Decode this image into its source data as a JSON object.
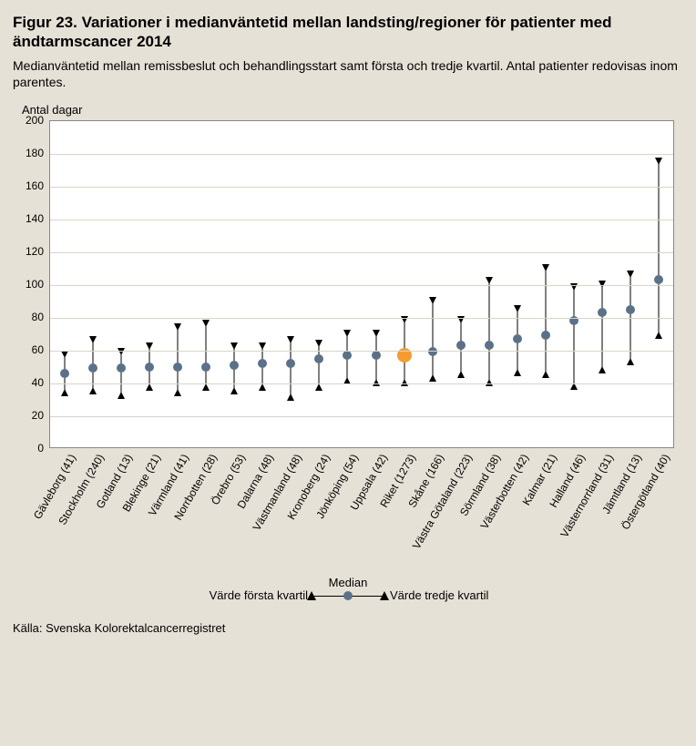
{
  "title": "Figur 23. Variationer i medianväntetid mellan landsting/regioner för patienter med ändtarmscancer 2014",
  "subtitle": "Medianväntetid mellan remissbeslut och behandlingsstart samt första och tredje kvartil. Antal patienter redovisas inom parentes.",
  "y_axis_title": "Antal dagar",
  "source": "Källa: Svenska Kolorektalcancerregistret",
  "legend": {
    "median": "Median",
    "q1": "Värde första kvartil",
    "q3": "Värde tredje kvartil"
  },
  "chart": {
    "type": "point-range",
    "background_color": "#ffffff",
    "page_background_color": "#e6e1d6",
    "grid_color": "#d9d4c9",
    "border_color": "#888888",
    "ylim": [
      0,
      200
    ],
    "yticks": [
      0,
      20,
      40,
      60,
      80,
      100,
      120,
      140,
      160,
      180,
      200
    ],
    "marker_color": "#5b7188",
    "highlight_color": "#f59c2e",
    "whisker_color": "#000000",
    "marker_radius": 5,
    "highlight_radius": 8,
    "title_fontsize": 17,
    "subtitle_fontsize": 14,
    "axis_label_fontsize": 13,
    "tick_fontsize": 12,
    "categories": [
      {
        "label": "Gävleborg (41)",
        "median": 45,
        "q1": 35,
        "q3": 57,
        "highlight": false
      },
      {
        "label": "Stockholm (240)",
        "median": 48,
        "q1": 36,
        "q3": 66,
        "highlight": false
      },
      {
        "label": "Gotland (13)",
        "median": 48,
        "q1": 33,
        "q3": 59,
        "highlight": false
      },
      {
        "label": "Blekinge (21)",
        "median": 49,
        "q1": 38,
        "q3": 62,
        "highlight": false
      },
      {
        "label": "Värmland (41)",
        "median": 49,
        "q1": 35,
        "q3": 74,
        "highlight": false
      },
      {
        "label": "Norrbotten (28)",
        "median": 49,
        "q1": 38,
        "q3": 76,
        "highlight": false
      },
      {
        "label": "Örebro (53)",
        "median": 50,
        "q1": 36,
        "q3": 62,
        "highlight": false
      },
      {
        "label": "Dalarna (48)",
        "median": 51,
        "q1": 38,
        "q3": 62,
        "highlight": false
      },
      {
        "label": "Västmanland (48)",
        "median": 51,
        "q1": 32,
        "q3": 66,
        "highlight": false
      },
      {
        "label": "Kronoberg (24)",
        "median": 54,
        "q1": 38,
        "q3": 64,
        "highlight": false
      },
      {
        "label": "Jönköping (54)",
        "median": 56,
        "q1": 42,
        "q3": 70,
        "highlight": false
      },
      {
        "label": "Uppsala (42)",
        "median": 56,
        "q1": 41,
        "q3": 70,
        "highlight": false
      },
      {
        "label": "Riket (1273)",
        "median": 56,
        "q1": 41,
        "q3": 78,
        "highlight": true
      },
      {
        "label": "Skåne (166)",
        "median": 58,
        "q1": 44,
        "q3": 90,
        "highlight": false
      },
      {
        "label": "Västra Götaland (223)",
        "median": 62,
        "q1": 46,
        "q3": 78,
        "highlight": false
      },
      {
        "label": "Sörmland (38)",
        "median": 62,
        "q1": 41,
        "q3": 102,
        "highlight": false
      },
      {
        "label": "Västerbotten (42)",
        "median": 66,
        "q1": 47,
        "q3": 85,
        "highlight": false
      },
      {
        "label": "Kalmar (21)",
        "median": 68,
        "q1": 46,
        "q3": 110,
        "highlight": false
      },
      {
        "label": "Halland (46)",
        "median": 77,
        "q1": 39,
        "q3": 98,
        "highlight": false
      },
      {
        "label": "Västernorrland (31)",
        "median": 82,
        "q1": 49,
        "q3": 100,
        "highlight": false
      },
      {
        "label": "Jämtland (13)",
        "median": 84,
        "q1": 54,
        "q3": 106,
        "highlight": false
      },
      {
        "label": "Östergötland (40)",
        "median": 102,
        "q1": 70,
        "q3": 175,
        "highlight": false
      }
    ]
  }
}
